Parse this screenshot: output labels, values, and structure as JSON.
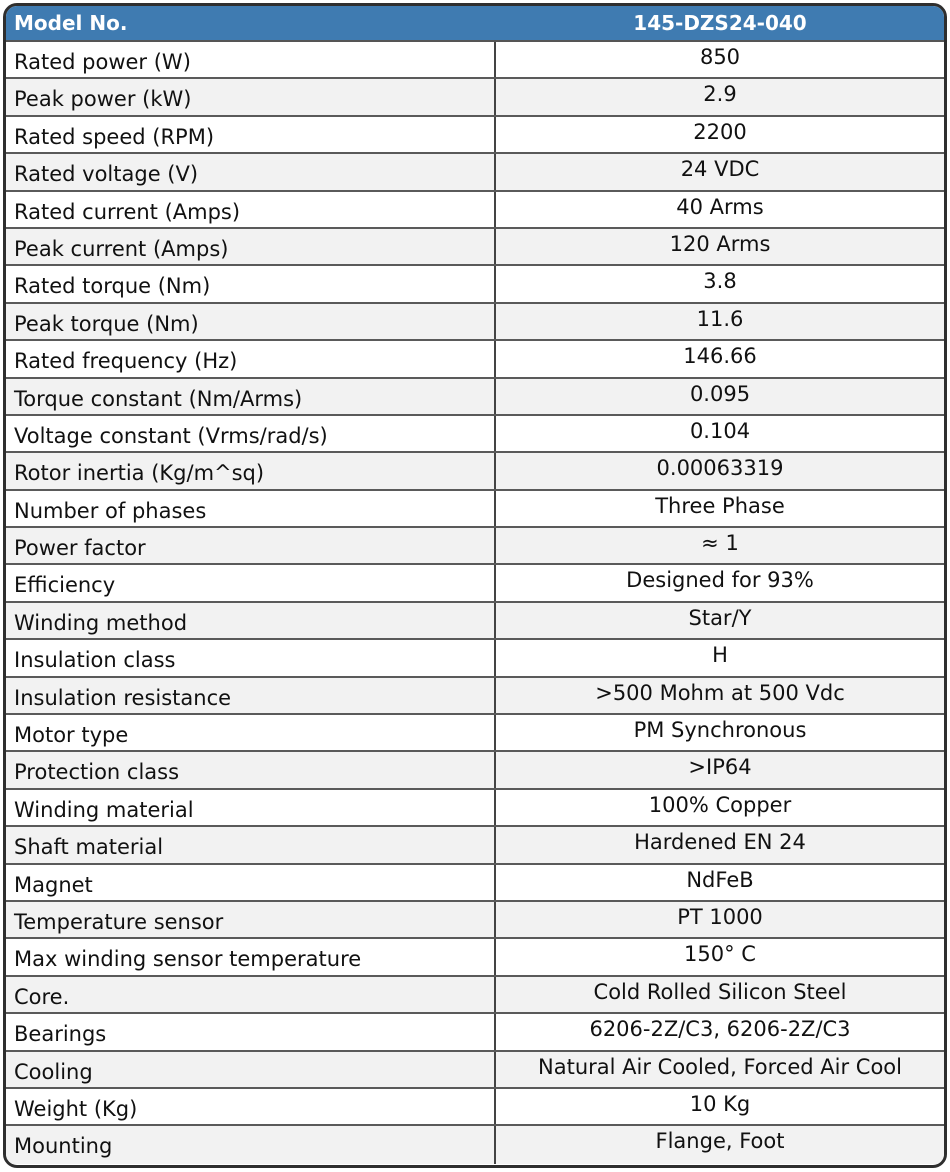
{
  "header": {
    "label": "Model No.",
    "value": "145-DZS24-040"
  },
  "colors": {
    "header_bg": "#3f7bb1",
    "header_text": "#ffffff",
    "alt_row": "#f2f2f2"
  },
  "rows": [
    {
      "label": "Rated power (W)",
      "value": "850"
    },
    {
      "label": "Peak power (kW)",
      "value": "2.9"
    },
    {
      "label": "Rated speed (RPM)",
      "value": "2200"
    },
    {
      "label": "Rated voltage (V)",
      "value": "24 VDC"
    },
    {
      "label": "Rated current (Amps)",
      "value": "40 Arms"
    },
    {
      "label": "Peak current (Amps)",
      "value": "120 Arms"
    },
    {
      "label": "Rated torque (Nm)",
      "value": "3.8"
    },
    {
      "label": "Peak torque (Nm)",
      "value": "11.6"
    },
    {
      "label": "Rated frequency (Hz)",
      "value": "146.66"
    },
    {
      "label": "Torque constant (Nm/Arms)",
      "value": "0.095"
    },
    {
      "label": "Voltage constant (Vrms/rad/s)",
      "value": "0.104"
    },
    {
      "label": "Rotor inertia (Kg/m^sq)",
      "value": "0.00063319"
    },
    {
      "label": "Number of phases",
      "value": "Three Phase"
    },
    {
      "label": "Power factor",
      "value": "≈ 1"
    },
    {
      "label": "Efficiency",
      "value": "Designed for 93%"
    },
    {
      "label": "Winding method",
      "value": "Star/Y"
    },
    {
      "label": "Insulation class",
      "value": "H"
    },
    {
      "label": "Insulation resistance",
      "value": ">500 Mohm at 500 Vdc"
    },
    {
      "label": "Motor type",
      "value": "PM Synchronous"
    },
    {
      "label": "Protection class",
      "value": ">IP64"
    },
    {
      "label": "Winding material",
      "value": "100% Copper"
    },
    {
      "label": "Shaft material",
      "value": "Hardened EN 24"
    },
    {
      "label": "Magnet",
      "value": "NdFeB"
    },
    {
      "label": "Temperature sensor",
      "value": "PT 1000"
    },
    {
      "label": "Max winding sensor temperature",
      "value": "150° C"
    },
    {
      "label": "Core.",
      "value": "Cold Rolled Silicon Steel"
    },
    {
      "label": "Bearings",
      "value": "6206-2Z/C3, 6206-2Z/C3"
    },
    {
      "label": "Cooling",
      "value": "Natural Air Cooled, Forced Air Cool"
    },
    {
      "label": "Weight (Kg)",
      "value": "10 Kg"
    },
    {
      "label": "Mounting",
      "value": "Flange, Foot"
    }
  ]
}
